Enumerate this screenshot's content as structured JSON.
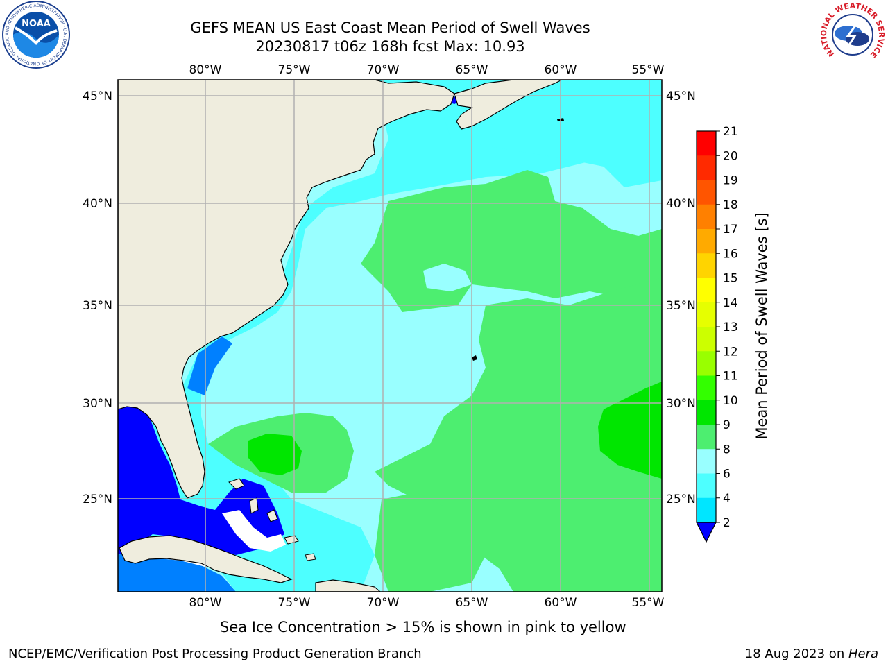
{
  "title": {
    "line1": "GEFS MEAN US East Coast Mean Period of Swell Waves",
    "line2": "20230817 t06z 168h fcst   Max: 10.93"
  },
  "map": {
    "lon_ticks": [
      "80°W",
      "75°W",
      "70°W",
      "65°W",
      "60°W",
      "55°W"
    ],
    "lat_ticks": [
      "45°N",
      "40°N",
      "35°N",
      "30°N",
      "25°N"
    ],
    "lon_range": [
      -85,
      -54
    ],
    "lat_range": [
      20.5,
      46
    ],
    "land_color": "#efedde",
    "grid_color": "#b0b0b0"
  },
  "colorbar": {
    "title": "Mean Period of Swell Waves [s]",
    "labels": [
      "21",
      "20",
      "19",
      "18",
      "17",
      "16",
      "15",
      "14",
      "13",
      "12",
      "11",
      "10",
      "9",
      "8",
      "6",
      "4",
      "2"
    ],
    "colors": [
      "#ff0000",
      "#ff2a00",
      "#ff5500",
      "#ff8000",
      "#ffaa00",
      "#ffd400",
      "#ffff00",
      "#e6ff00",
      "#ccff00",
      "#99ff00",
      "#33ff00",
      "#00e600",
      "#4dee70",
      "#99ffff",
      "#4dffff",
      "#00e6ff",
      "#0080ff",
      "#0000ff"
    ]
  },
  "caption": "Sea Ice Concentration > 15% is shown in pink to yellow",
  "footer": {
    "left": "NCEP/EMC/Verification Post Processing Product Generation Branch",
    "right_prefix": "18 Aug 2023 on ",
    "right_host": "Hera"
  },
  "logos": {
    "noaa": "NOAA",
    "nws_ring": "NATIONAL WEATHER SERVICE",
    "noaa_ring": "NATIONAL OCEANIC AND ATMOSPHERIC ADMINISTRATION · U.S. DEPARTMENT OF COMMERCE"
  }
}
